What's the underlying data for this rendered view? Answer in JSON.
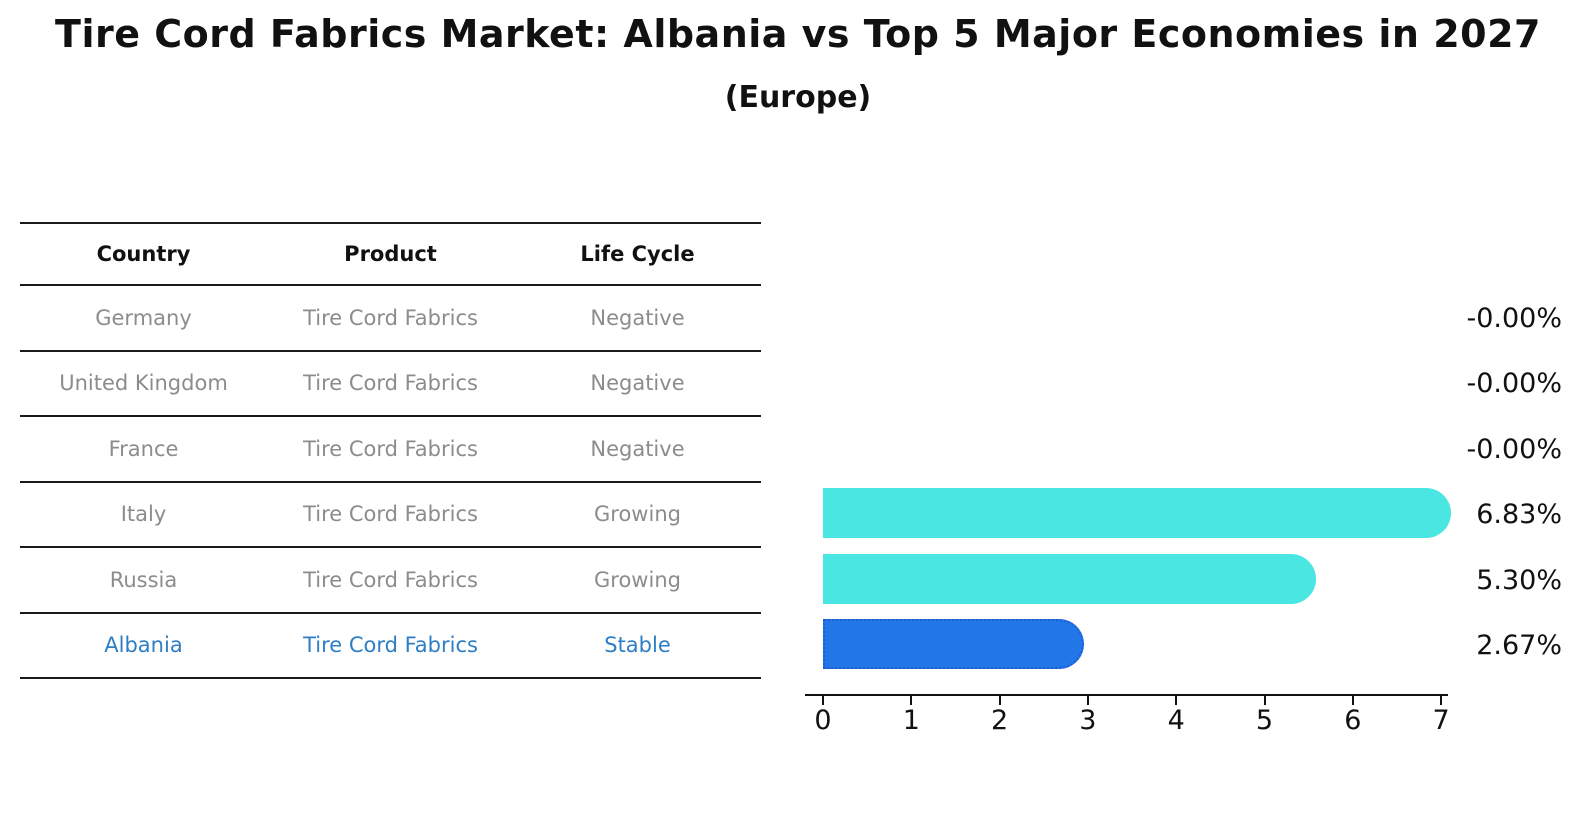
{
  "title": "Tire Cord Fabrics Market: Albania vs Top 5 Major Economies in 2027",
  "subtitle": "(Europe)",
  "table": {
    "headers": [
      "Country",
      "Product",
      "Life Cycle"
    ],
    "rows": [
      {
        "country": "Germany",
        "product": "Tire Cord Fabrics",
        "life_cycle": "Negative",
        "highlighted": false
      },
      {
        "country": "United Kingdom",
        "product": "Tire Cord Fabrics",
        "life_cycle": "Negative",
        "highlighted": false
      },
      {
        "country": "France",
        "product": "Tire Cord Fabrics",
        "life_cycle": "Negative",
        "highlighted": false
      },
      {
        "country": "Italy",
        "product": "Tire Cord Fabrics",
        "life_cycle": "Growing",
        "highlighted": false
      },
      {
        "country": "Russia",
        "product": "Tire Cord Fabrics",
        "life_cycle": "Growing",
        "highlighted": false
      },
      {
        "country": "Albania",
        "product": "Tire Cord Fabrics",
        "life_cycle": "Stable",
        "highlighted": true
      }
    ]
  },
  "chart_data": {
    "type": "bar",
    "orientation": "horizontal",
    "categories": [
      "Germany",
      "United Kingdom",
      "France",
      "Italy",
      "Russia",
      "Albania"
    ],
    "values": [
      -0.0,
      -0.0,
      -0.0,
      6.83,
      5.3,
      2.67
    ],
    "value_labels": [
      "-0.00%",
      "-0.00%",
      "-0.00%",
      "6.83%",
      "5.30%",
      "2.67%"
    ],
    "highlight_index": 5,
    "xticks": [
      0,
      1,
      2,
      3,
      4,
      5,
      6,
      7
    ],
    "xlim": [
      0,
      7.3
    ],
    "xlabel": "",
    "ylabel": "",
    "grid": false,
    "legend": "none"
  },
  "colors": {
    "bar_default": "#4AE6E2",
    "bar_highlight": "#2376E8",
    "bar_highlight_border": "#1A5ED0",
    "row_text": "#8C8C8C",
    "highlight_text": "#2E7EC6",
    "header_text": "#111111",
    "axis": "#111111"
  }
}
